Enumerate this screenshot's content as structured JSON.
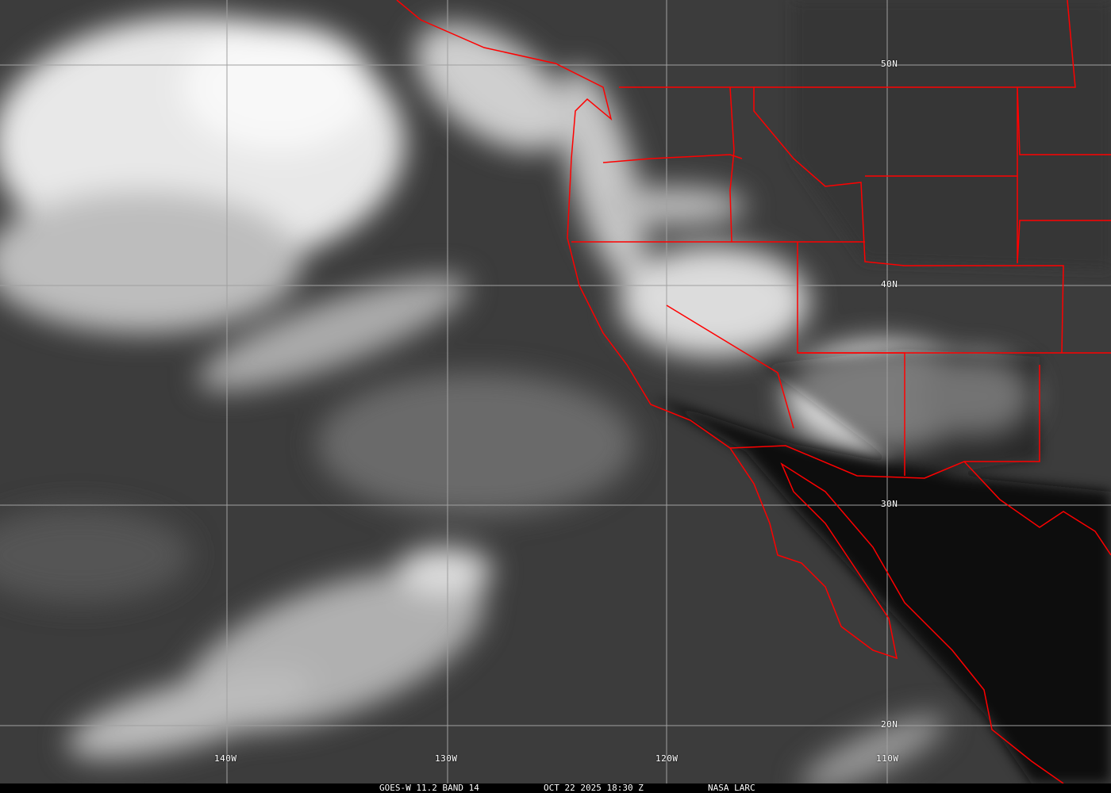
{
  "caption": {
    "product": "GOES-W 11.2 BAND 14",
    "datetime": "OCT 22 2025 18:30 Z",
    "credit": "NASA LARC"
  },
  "grid": {
    "longitudes": [
      "140W",
      "130W",
      "120W",
      "110W"
    ],
    "latitudes": [
      "50N",
      "40N",
      "30N",
      "20N"
    ]
  },
  "colors": {
    "boundaries": "#ff0000",
    "grid": "#a0a0a0",
    "background": "#000000"
  }
}
